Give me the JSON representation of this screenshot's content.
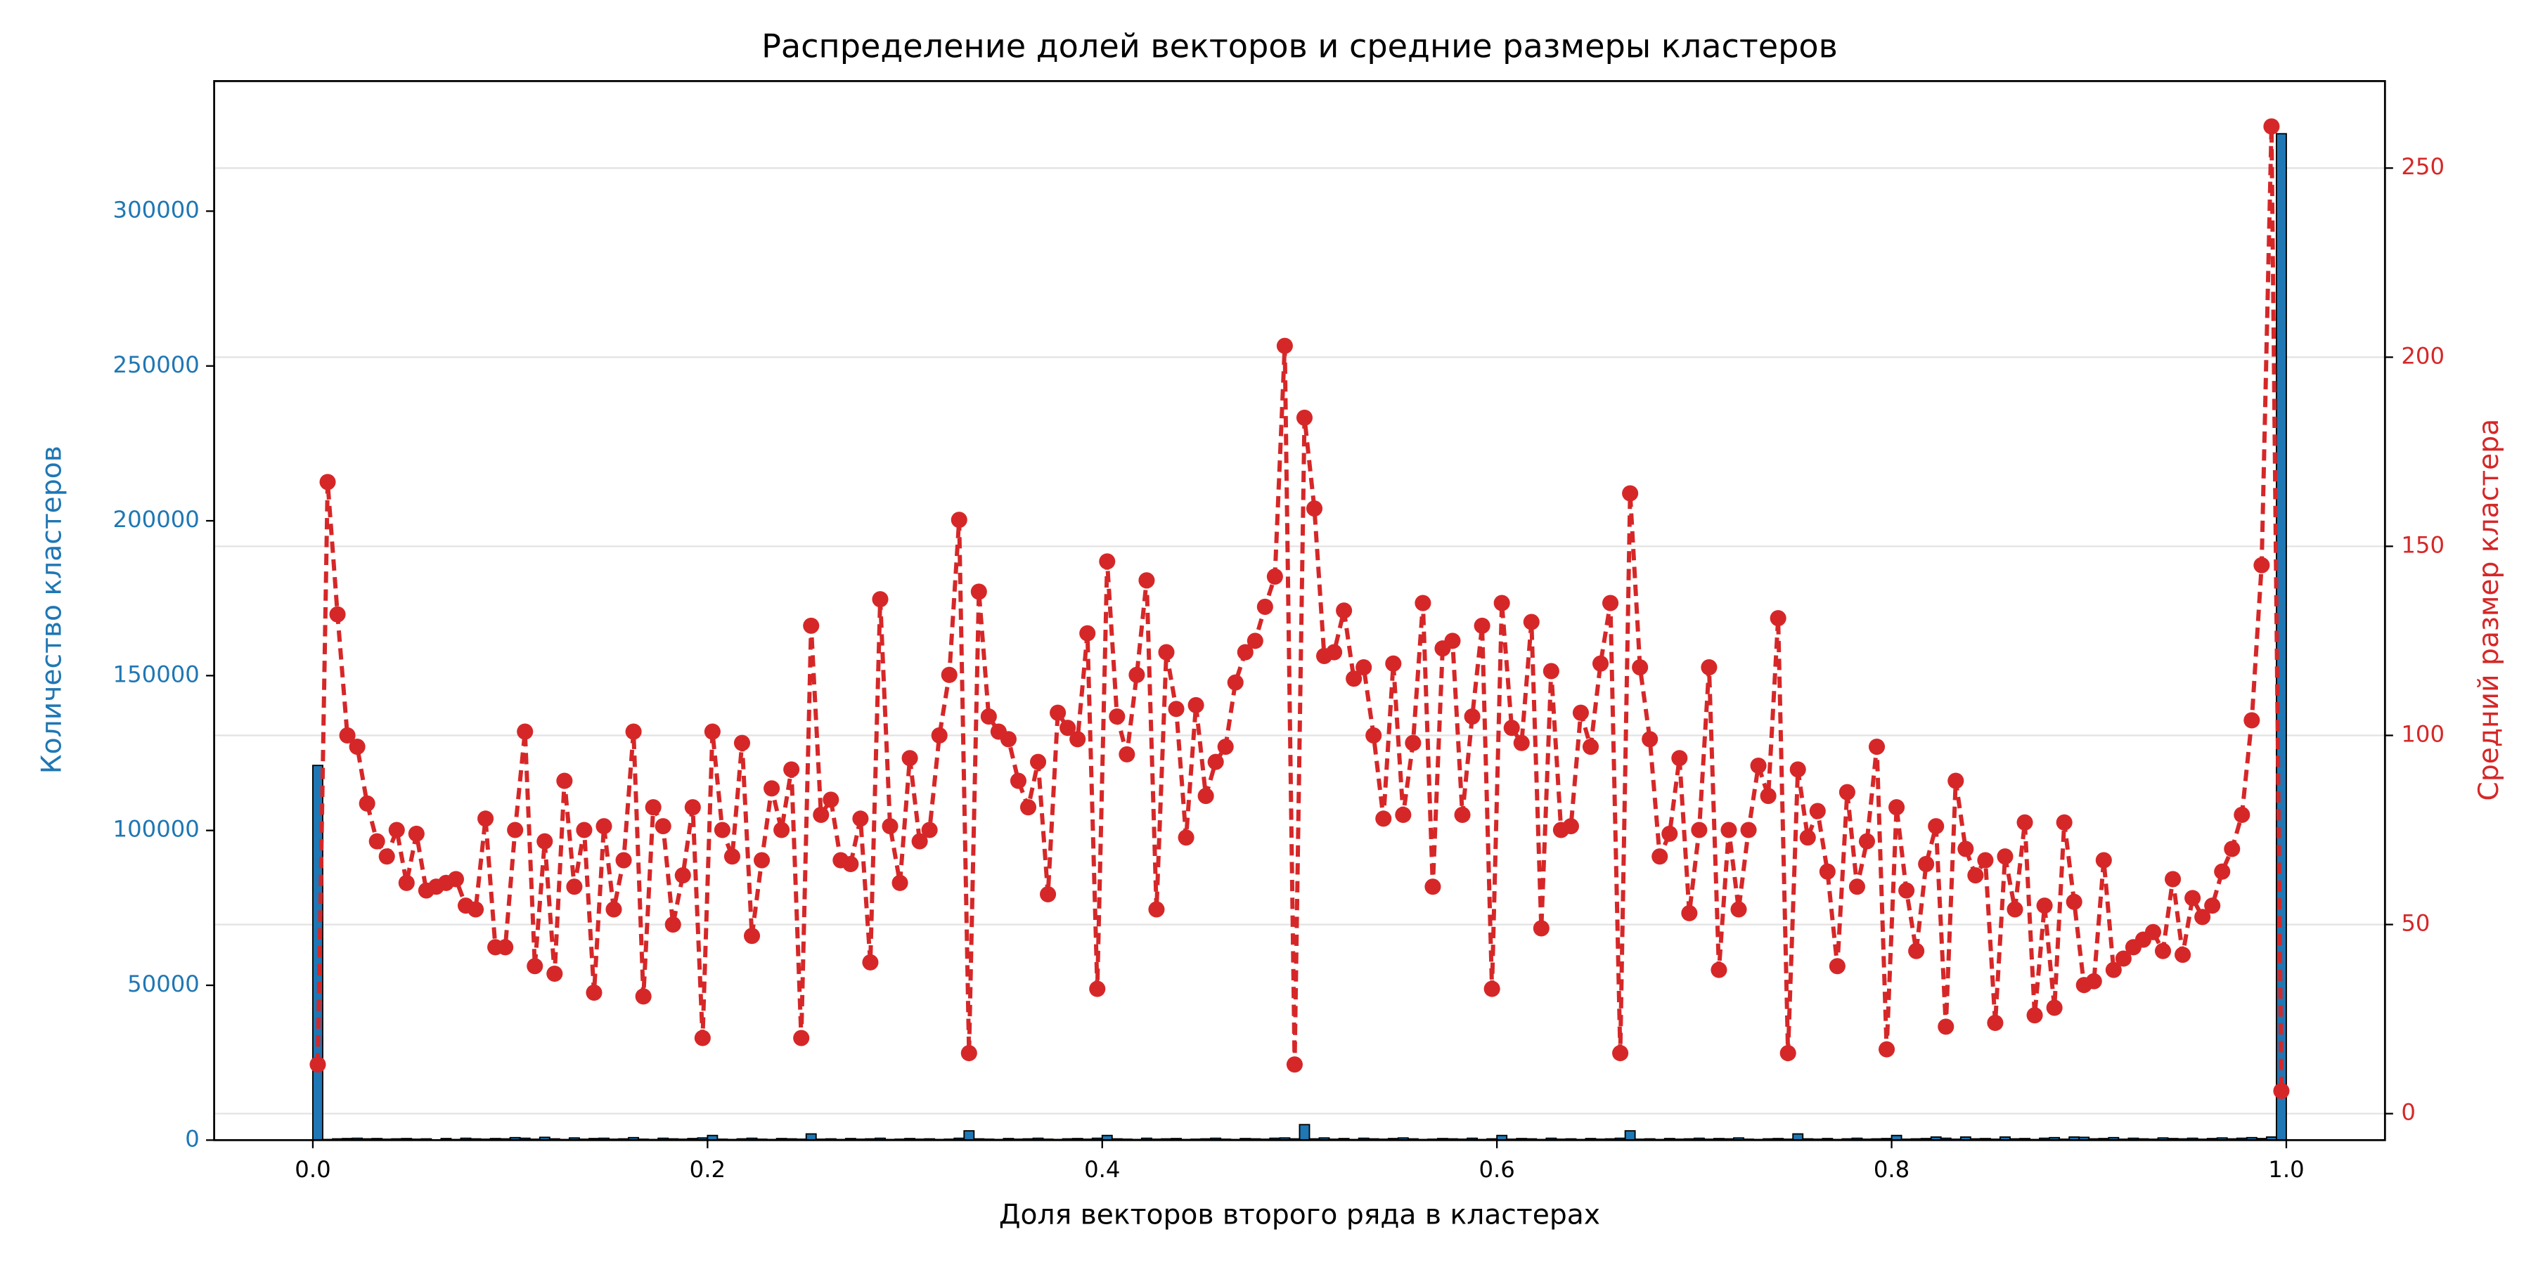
{
  "chart_data": {
    "type": "histogram",
    "title": "Распределение долей векторов и средние размеры кластеров",
    "xlabel": "Доля векторов второго ряда в кластерах",
    "ylabel": "Количество кластеров",
    "y2label": "Средний размер кластера",
    "ylabel_color": "#1f77b4",
    "y2label_color": "#d62728",
    "color": "#1f77b4",
    "edgecolor": "#000000",
    "grid": true,
    "grid_axis": "y2",
    "xlim": [
      -0.05,
      1.05
    ],
    "xticks": [
      {
        "value": 0,
        "label": "0.0"
      },
      {
        "value": 0.2,
        "label": "0.2"
      },
      {
        "value": 0.4,
        "label": "0.4"
      },
      {
        "value": 0.6,
        "label": "0.6"
      },
      {
        "value": 0.8,
        "label": "0.8"
      },
      {
        "value": 1,
        "label": "1.0"
      }
    ],
    "ylim": [
      0,
      342000
    ],
    "yticks": [
      0,
      50000,
      100000,
      150000,
      200000,
      250000,
      300000
    ],
    "y2lim": [
      -7,
      273
    ],
    "y2ticks": [
      0,
      50,
      100,
      150,
      200,
      250
    ],
    "bins": [
      0,
      0.005,
      0.01,
      0.015,
      0.02,
      0.025,
      0.03,
      0.035,
      0.04,
      0.045,
      0.05,
      0.055,
      0.06,
      0.065,
      0.07,
      0.075,
      0.08,
      0.085,
      0.09,
      0.095,
      0.1,
      0.105,
      0.11,
      0.115,
      0.12,
      0.125,
      0.13,
      0.135,
      0.14,
      0.145,
      0.15,
      0.155,
      0.16,
      0.165,
      0.17,
      0.175,
      0.18,
      0.185,
      0.19,
      0.195,
      0.2,
      0.205,
      0.21,
      0.215,
      0.22,
      0.225,
      0.23,
      0.235,
      0.24,
      0.245,
      0.25,
      0.255,
      0.26,
      0.265,
      0.27,
      0.275,
      0.28,
      0.285,
      0.29,
      0.295,
      0.3,
      0.305,
      0.31,
      0.315,
      0.32,
      0.325,
      0.33,
      0.335,
      0.34,
      0.345,
      0.35,
      0.355,
      0.36,
      0.365,
      0.37,
      0.375,
      0.38,
      0.385,
      0.39,
      0.395,
      0.4,
      0.405,
      0.41,
      0.415,
      0.42,
      0.425,
      0.43,
      0.435,
      0.44,
      0.445,
      0.45,
      0.455,
      0.46,
      0.465,
      0.47,
      0.475,
      0.48,
      0.485,
      0.49,
      0.495,
      0.5,
      0.505,
      0.51,
      0.515,
      0.52,
      0.525,
      0.53,
      0.535,
      0.54,
      0.545,
      0.55,
      0.555,
      0.56,
      0.565,
      0.57,
      0.575,
      0.58,
      0.585,
      0.59,
      0.595,
      0.6,
      0.605,
      0.61,
      0.615,
      0.62,
      0.625,
      0.63,
      0.635,
      0.64,
      0.645,
      0.65,
      0.655,
      0.66,
      0.665,
      0.67,
      0.675,
      0.68,
      0.685,
      0.69,
      0.695,
      0.7,
      0.705,
      0.71,
      0.715,
      0.72,
      0.725,
      0.73,
      0.735,
      0.74,
      0.745,
      0.75,
      0.755,
      0.76,
      0.765,
      0.77,
      0.775,
      0.78,
      0.785,
      0.79,
      0.795,
      0.8,
      0.805,
      0.81,
      0.815,
      0.82,
      0.825,
      0.83,
      0.835,
      0.84,
      0.845,
      0.85,
      0.855,
      0.86,
      0.865,
      0.87,
      0.875,
      0.88,
      0.885,
      0.89,
      0.895,
      0.9,
      0.905,
      0.91,
      0.915,
      0.92,
      0.925,
      0.93,
      0.935,
      0.94,
      0.945,
      0.95,
      0.955,
      0.96,
      0.965,
      0.97,
      0.975,
      0.98,
      0.985,
      0.99,
      0.995,
      1
    ],
    "values": [
      121000,
      200,
      400,
      500,
      600,
      400,
      500,
      300,
      400,
      500,
      300,
      400,
      0,
      500,
      200,
      600,
      400,
      300,
      500,
      400,
      800,
      600,
      300,
      900,
      400,
      200,
      700,
      300,
      500,
      600,
      300,
      400,
      800,
      300,
      200,
      600,
      400,
      300,
      500,
      700,
      1500,
      300,
      200,
      400,
      600,
      300,
      200,
      500,
      400,
      300,
      2000,
      300,
      400,
      200,
      500,
      300,
      400,
      600,
      200,
      300,
      500,
      300,
      400,
      200,
      300,
      600,
      3000,
      400,
      300,
      200,
      500,
      300,
      400,
      600,
      300,
      200,
      400,
      500,
      300,
      600,
      1500,
      400,
      300,
      200,
      600,
      300,
      400,
      500,
      200,
      300,
      400,
      600,
      300,
      200,
      500,
      400,
      300,
      600,
      700,
      400,
      5000,
      400,
      700,
      300,
      500,
      200,
      600,
      400,
      300,
      500,
      700,
      400,
      200,
      300,
      500,
      400,
      300,
      600,
      200,
      400,
      1500,
      300,
      500,
      400,
      200,
      600,
      300,
      400,
      200,
      500,
      300,
      400,
      600,
      3000,
      300,
      400,
      200,
      500,
      300,
      400,
      600,
      300,
      500,
      400,
      700,
      300,
      200,
      400,
      500,
      300,
      2000,
      400,
      300,
      500,
      200,
      400,
      600,
      300,
      400,
      500,
      1500,
      300,
      400,
      500,
      1000,
      600,
      300,
      1000,
      400,
      500,
      300,
      1000,
      400,
      500,
      200,
      600,
      800,
      300,
      1000,
      900,
      400,
      500,
      800,
      300,
      600,
      400,
      300,
      700,
      500,
      400,
      600,
      300,
      500,
      700,
      400,
      600,
      800,
      500,
      1000,
      325000
    ],
    "series": [
      {
        "type": "line",
        "axis": "y2",
        "color": "#d62728",
        "linestyle": "dashed",
        "marker": "circle",
        "x": [
          0.0025,
          0.0075,
          0.0125,
          0.0175,
          0.0225,
          0.0275,
          0.0325,
          0.0375,
          0.0425,
          0.0475,
          0.0525,
          0.0575,
          0.0625,
          0.0675,
          0.0725,
          0.0775,
          0.0825,
          0.0875,
          0.0925,
          0.0975,
          0.1025,
          0.1075,
          0.1125,
          0.1175,
          0.1225,
          0.1275,
          0.1325,
          0.1375,
          0.1425,
          0.1475,
          0.1525,
          0.1575,
          0.1625,
          0.1675,
          0.1725,
          0.1775,
          0.1825,
          0.1875,
          0.1925,
          0.1975,
          0.2025,
          0.2075,
          0.2125,
          0.2175,
          0.2225,
          0.2275,
          0.2325,
          0.2375,
          0.2425,
          0.2475,
          0.2525,
          0.2575,
          0.2625,
          0.2675,
          0.2725,
          0.2775,
          0.2825,
          0.2875,
          0.2925,
          0.2975,
          0.3025,
          0.3075,
          0.3125,
          0.3175,
          0.3225,
          0.3275,
          0.3325,
          0.3375,
          0.3425,
          0.3475,
          0.3525,
          0.3575,
          0.3625,
          0.3675,
          0.3725,
          0.3775,
          0.3825,
          0.3875,
          0.3925,
          0.3975,
          0.4025,
          0.4075,
          0.4125,
          0.4175,
          0.4225,
          0.4275,
          0.4325,
          0.4375,
          0.4425,
          0.4475,
          0.4525,
          0.4575,
          0.4625,
          0.4675,
          0.4725,
          0.4775,
          0.4825,
          0.4875,
          0.4925,
          0.4975,
          0.5025,
          0.5075,
          0.5125,
          0.5175,
          0.5225,
          0.5275,
          0.5325,
          0.5375,
          0.5425,
          0.5475,
          0.5525,
          0.5575,
          0.5625,
          0.5675,
          0.5725,
          0.5775,
          0.5825,
          0.5875,
          0.5925,
          0.5975,
          0.6025,
          0.6075,
          0.6125,
          0.6175,
          0.6225,
          0.6275,
          0.6325,
          0.6375,
          0.6425,
          0.6475,
          0.6525,
          0.6575,
          0.6625,
          0.6675,
          0.6725,
          0.6775,
          0.6825,
          0.6875,
          0.6925,
          0.6975,
          0.7025,
          0.7075,
          0.7125,
          0.7175,
          0.7225,
          0.7275,
          0.7325,
          0.7375,
          0.7425,
          0.7475,
          0.7525,
          0.7575,
          0.7625,
          0.7675,
          0.7725,
          0.7775,
          0.7825,
          0.7875,
          0.7925,
          0.7975,
          0.8025,
          0.8075,
          0.8125,
          0.8175,
          0.8225,
          0.8275,
          0.8325,
          0.8375,
          0.8425,
          0.8475,
          0.8525,
          0.8575,
          0.8625,
          0.8675,
          0.8725,
          0.8775,
          0.8825,
          0.8875,
          0.8925,
          0.8975,
          0.9025,
          0.9075,
          0.9125,
          0.9175,
          0.9225,
          0.9275,
          0.9325,
          0.9375,
          0.9425,
          0.9475,
          0.9525,
          0.9575,
          0.9625,
          0.9675,
          0.9725,
          0.9775,
          0.9825,
          0.9875,
          0.9925,
          0.9975
        ],
        "values": [
          13,
          167,
          132,
          100,
          97,
          82,
          72,
          68,
          75,
          61,
          74,
          59,
          60,
          61,
          62,
          55,
          54,
          78,
          44,
          44,
          75,
          101,
          39,
          72,
          37,
          88,
          60,
          75,
          32,
          76,
          54,
          67,
          101,
          31,
          81,
          76,
          50,
          63,
          81,
          20,
          101,
          75,
          68,
          98,
          47,
          67,
          86,
          75,
          91,
          20,
          129,
          79,
          83,
          67,
          66,
          78,
          40,
          136,
          76,
          61,
          94,
          72,
          75,
          100,
          116,
          157,
          16,
          138,
          105,
          101,
          99,
          88,
          81,
          93,
          58,
          106,
          102,
          99,
          127,
          33,
          146,
          105,
          95,
          116,
          141,
          54,
          122,
          107,
          73,
          108,
          84,
          93,
          97,
          114,
          122,
          125,
          134,
          142,
          203,
          13,
          184,
          160,
          121,
          122,
          133,
          115,
          118,
          100,
          78,
          119,
          79,
          98,
          135,
          60,
          123,
          125,
          79,
          105,
          129,
          33,
          135,
          102,
          98,
          130,
          49,
          117,
          75,
          76,
          106,
          97,
          119,
          135,
          16,
          164,
          118,
          99,
          68,
          74,
          94,
          53,
          75,
          118,
          38,
          75,
          54,
          75,
          92,
          84,
          131,
          16,
          91,
          73,
          80,
          64,
          39,
          85,
          60,
          72,
          97,
          17,
          81,
          59,
          43,
          66,
          76,
          23,
          88,
          70,
          63,
          67,
          24,
          68,
          54,
          77,
          26,
          55,
          28,
          77,
          56,
          34,
          35,
          67,
          38,
          41,
          44,
          46,
          48,
          43,
          62,
          42,
          57,
          52,
          55,
          64,
          70,
          79,
          104,
          145,
          261,
          6
        ]
      }
    ]
  }
}
